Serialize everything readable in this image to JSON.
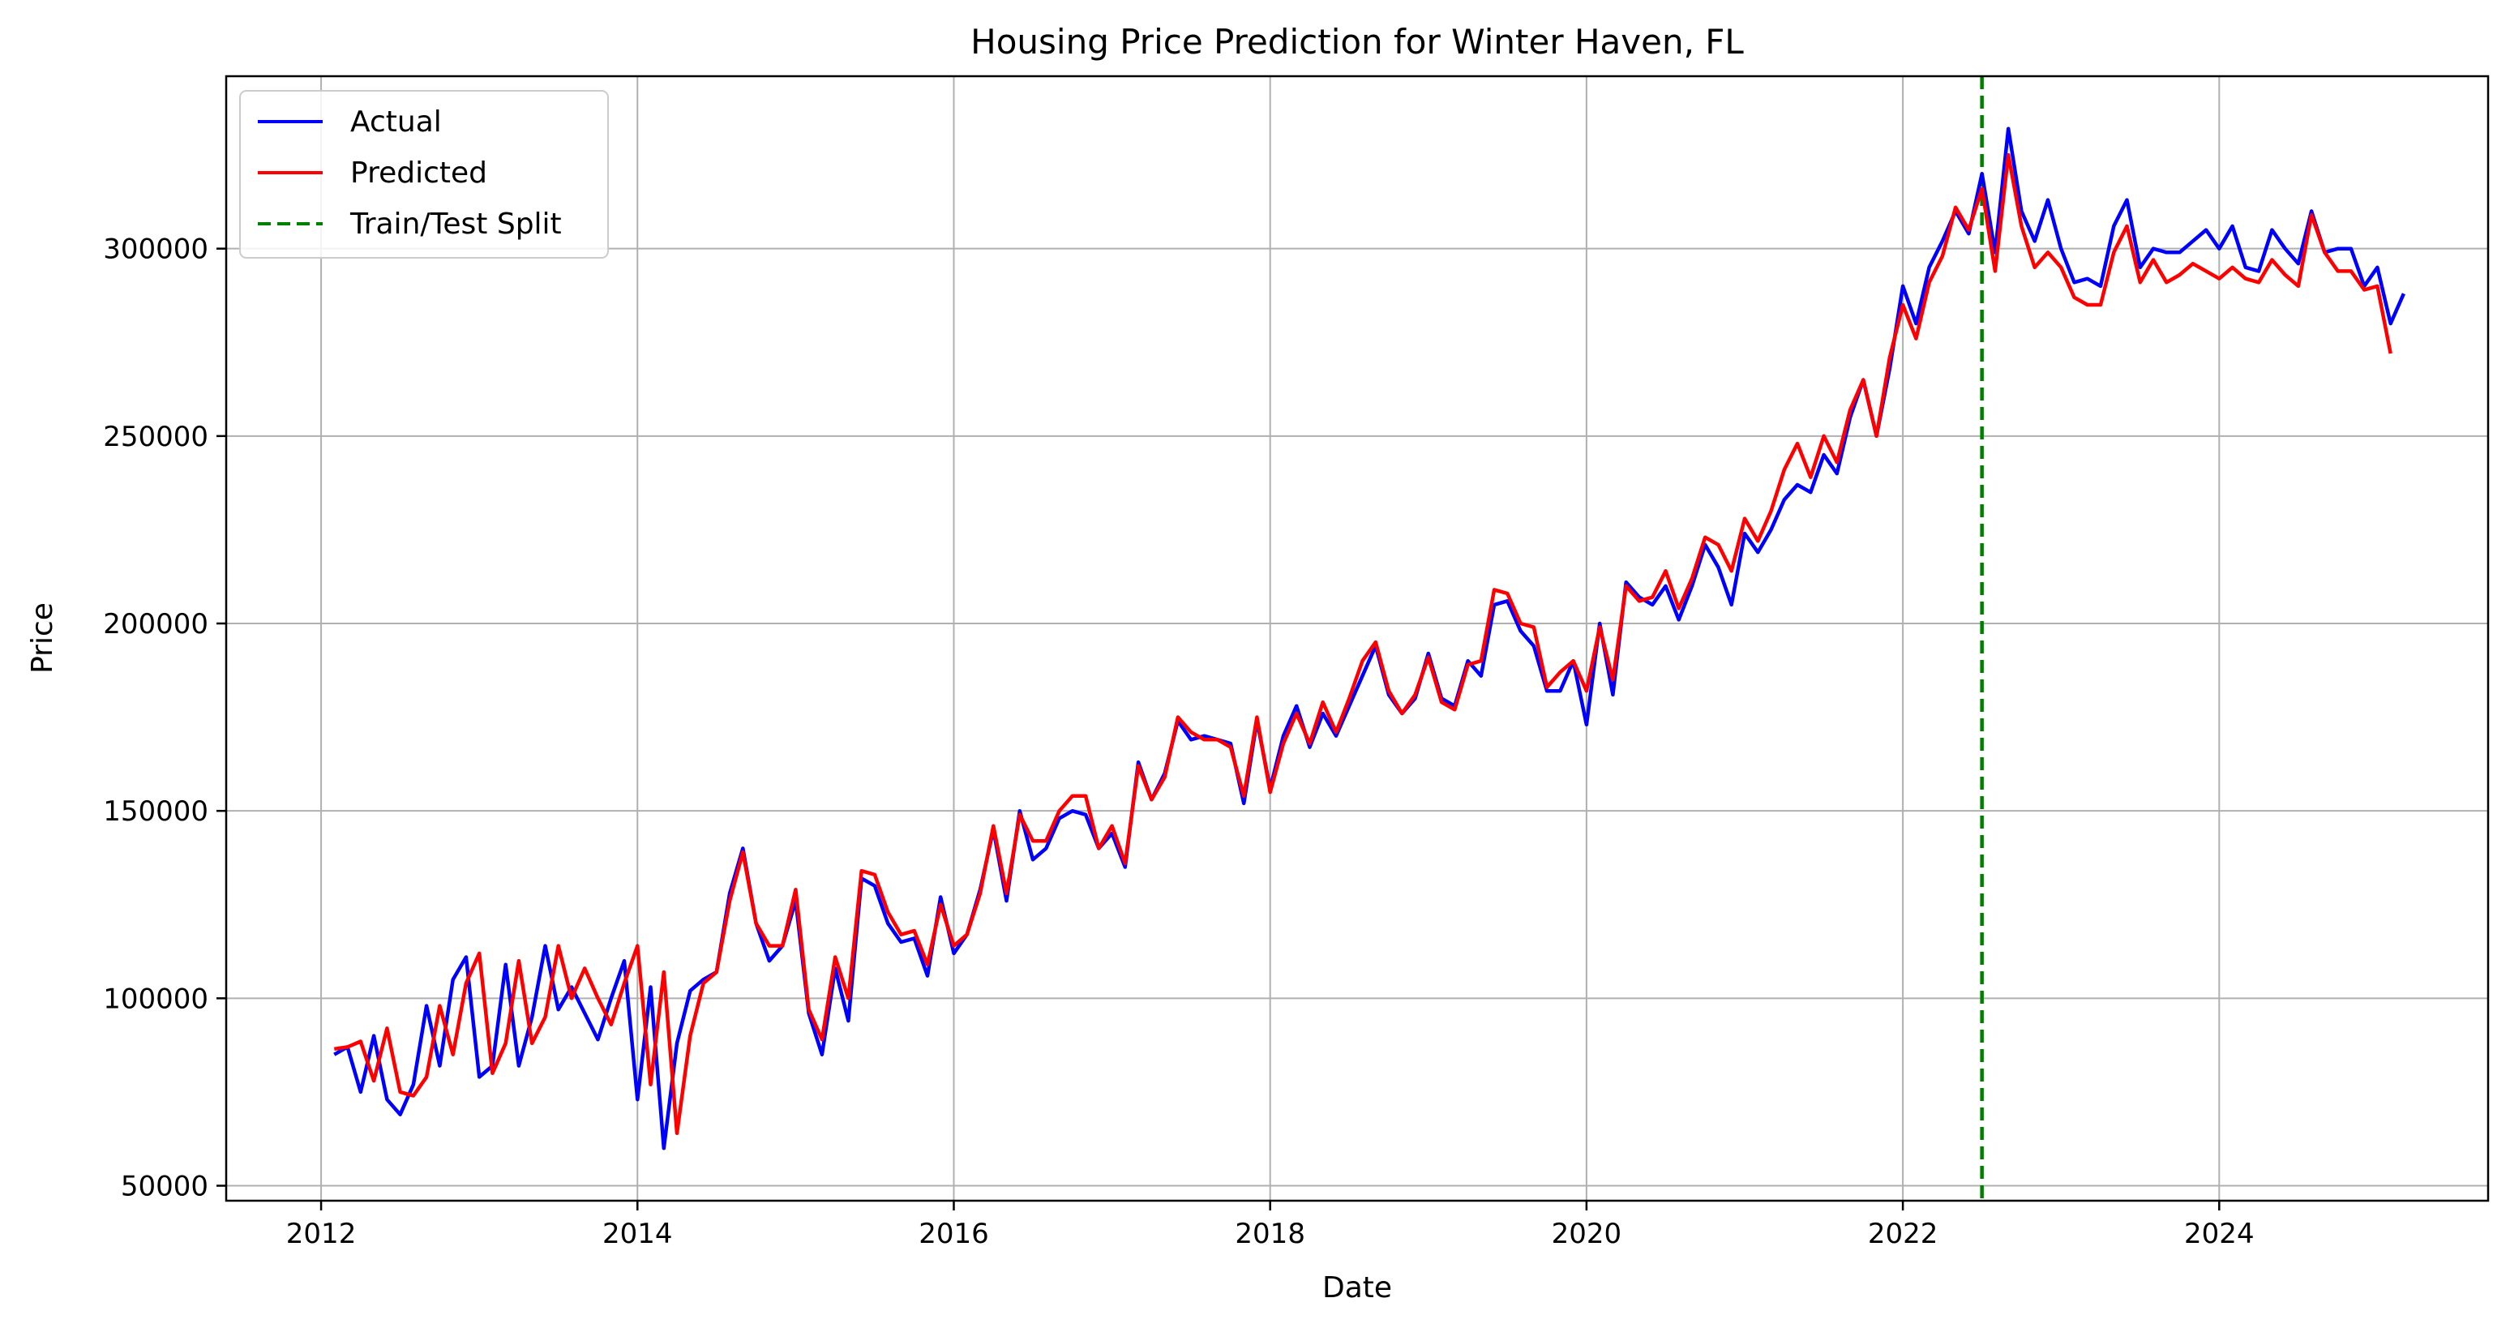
{
  "chart_data": {
    "type": "line",
    "title": "Housing Price Prediction for Winter Haven, FL",
    "xlabel": "Date",
    "ylabel": "Price",
    "xlim": [
      2011.4,
      2025.7
    ],
    "ylim": [
      46000,
      346000
    ],
    "x_ticks": [
      2012,
      2014,
      2016,
      2018,
      2020,
      2022,
      2024
    ],
    "x_tick_labels": [
      "2012",
      "2014",
      "2016",
      "2018",
      "2020",
      "2022",
      "2024"
    ],
    "y_ticks": [
      50000,
      100000,
      150000,
      200000,
      250000,
      300000
    ],
    "y_tick_labels": [
      "50000",
      "100000",
      "150000",
      "200000",
      "250000",
      "300000"
    ],
    "grid": true,
    "legend": {
      "placement": "top-left",
      "entries": [
        "Actual",
        "Predicted",
        "Train/Test Split"
      ]
    },
    "split": {
      "label": "Train/Test Split",
      "x": 2022.5,
      "color": "#008000",
      "style": "dashed"
    },
    "series": [
      {
        "name": "Actual",
        "color": "#0000ff",
        "x_start": 2012.083333,
        "x_step": 0.083333333,
        "values": [
          85000,
          87000,
          75000,
          90000,
          73000,
          69000,
          77000,
          98000,
          82000,
          105000,
          111000,
          79000,
          82000,
          109000,
          82000,
          95000,
          114000,
          97000,
          103000,
          96000,
          89000,
          100000,
          110000,
          73000,
          103000,
          60000,
          88000,
          102000,
          105000,
          107000,
          128000,
          140000,
          120000,
          110000,
          114000,
          126000,
          96000,
          85000,
          108000,
          94000,
          132000,
          130000,
          120000,
          115000,
          116000,
          106000,
          127000,
          112000,
          117000,
          129000,
          145000,
          126000,
          150000,
          137000,
          140000,
          148000,
          150000,
          149000,
          140000,
          144000,
          135000,
          163000,
          153000,
          160000,
          174000,
          169000,
          170000,
          169000,
          168000,
          152000,
          174000,
          156000,
          170000,
          178000,
          167000,
          176000,
          170000,
          178000,
          186000,
          194000,
          181000,
          176000,
          180000,
          192000,
          180000,
          178000,
          190000,
          186000,
          205000,
          206000,
          198000,
          194000,
          182000,
          182000,
          190000,
          173000,
          200000,
          181000,
          211000,
          207000,
          205000,
          210000,
          201000,
          210000,
          221000,
          215000,
          205000,
          224000,
          219000,
          225000,
          233000,
          237000,
          235000,
          245000,
          240000,
          255000,
          265000,
          250000,
          268000,
          290000,
          280000,
          295000,
          302000,
          310000,
          304000,
          320000,
          299000,
          332000,
          310000,
          302000,
          313000,
          300000,
          291000,
          292000,
          290000,
          306000,
          313000,
          295000,
          300000,
          299000,
          299000,
          302000,
          305000,
          300000,
          306000,
          295000,
          294000,
          305000,
          300000,
          296000,
          310000,
          299000,
          300000,
          300000,
          290000,
          295000,
          280000,
          288000
        ]
      },
      {
        "name": "Predicted",
        "color": "#ff0000",
        "x_start": 2012.083333,
        "x_step": 0.083333333,
        "values": [
          86500,
          87000,
          88500,
          78000,
          92000,
          75000,
          74000,
          79000,
          98000,
          85000,
          104000,
          112000,
          80000,
          88000,
          110000,
          88000,
          95000,
          114000,
          100000,
          108000,
          100000,
          93000,
          104000,
          114000,
          77000,
          107000,
          64000,
          90000,
          104000,
          107000,
          126000,
          139000,
          120000,
          114000,
          114000,
          129000,
          97000,
          89000,
          111000,
          100000,
          134000,
          133000,
          123000,
          117000,
          118000,
          109000,
          125000,
          114000,
          117000,
          128000,
          146000,
          128000,
          149000,
          142000,
          142000,
          150000,
          154000,
          154000,
          140000,
          146000,
          136000,
          162000,
          153000,
          159000,
          175000,
          171000,
          169000,
          169000,
          167000,
          154000,
          175000,
          155000,
          168000,
          176000,
          168000,
          179000,
          171000,
          180000,
          190000,
          195000,
          182000,
          176000,
          181000,
          191000,
          179000,
          177000,
          189000,
          190000,
          209000,
          208000,
          200000,
          199000,
          183000,
          187000,
          190000,
          182000,
          199000,
          185000,
          210000,
          206000,
          207000,
          214000,
          204000,
          212000,
          223000,
          221000,
          214000,
          228000,
          222000,
          230000,
          241000,
          248000,
          239000,
          250000,
          243000,
          257000,
          265000,
          250000,
          271000,
          285000,
          276000,
          291000,
          298000,
          311000,
          305000,
          316000,
          294000,
          325000,
          306000,
          295000,
          299000,
          295000,
          287000,
          285000,
          285000,
          299000,
          306000,
          291000,
          297000,
          291000,
          293000,
          296000,
          294000,
          292000,
          295000,
          292000,
          291000,
          297000,
          293000,
          290000,
          309000,
          299000,
          294000,
          294000,
          289000,
          290000,
          272000
        ]
      }
    ]
  }
}
